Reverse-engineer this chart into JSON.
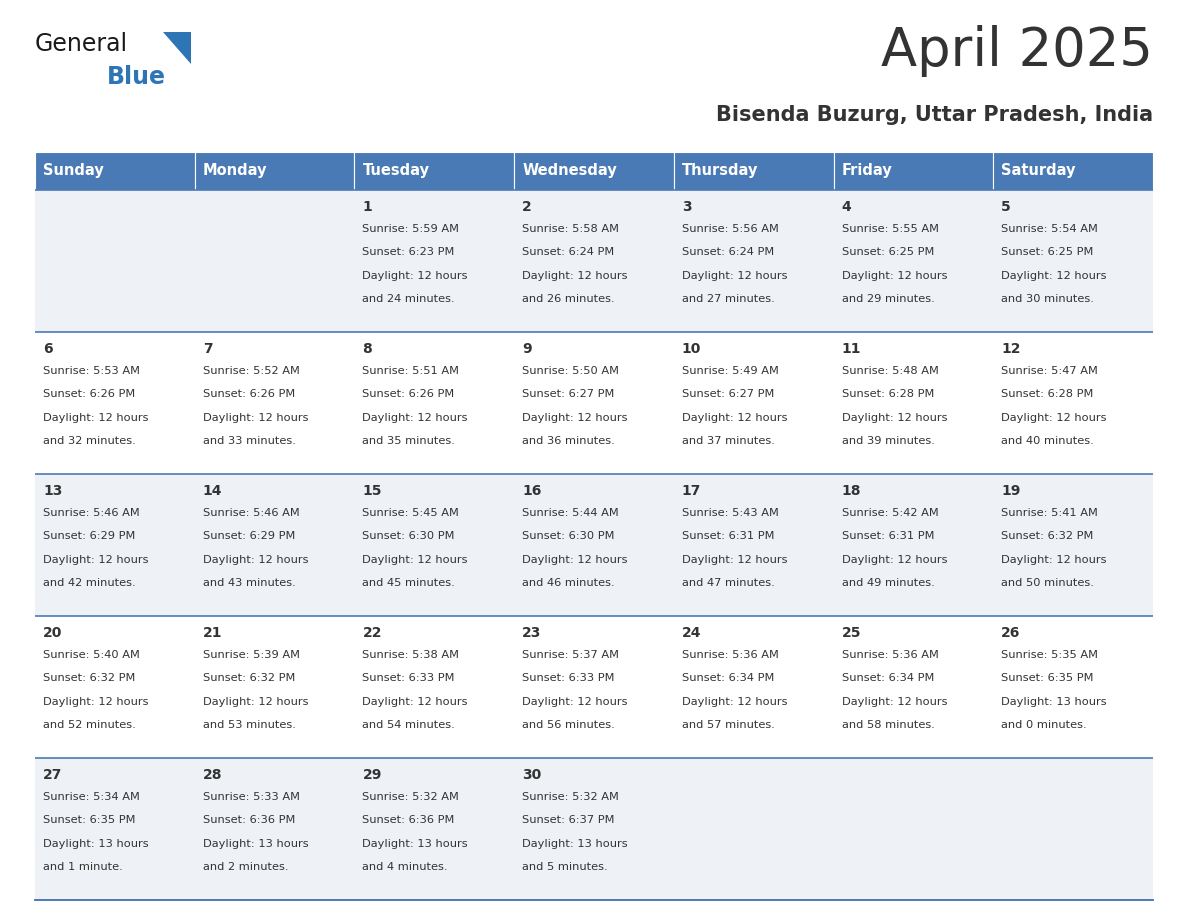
{
  "title": "April 2025",
  "subtitle": "Bisenda Buzurg, Uttar Pradesh, India",
  "header_bg": "#4a7ab5",
  "header_text": "#ffffff",
  "row_bg_light": "#eef2f7",
  "row_bg_white": "#ffffff",
  "border_color": "#4a7ab5",
  "text_color": "#333333",
  "logo_black": "#1a1a1a",
  "logo_blue": "#2e75b6",
  "days_of_week": [
    "Sunday",
    "Monday",
    "Tuesday",
    "Wednesday",
    "Thursday",
    "Friday",
    "Saturday"
  ],
  "calendar": [
    [
      null,
      null,
      {
        "day": 1,
        "sunrise": "5:59 AM",
        "sunset": "6:23 PM",
        "daylight": "12 hours",
        "daylight2": "and 24 minutes."
      },
      {
        "day": 2,
        "sunrise": "5:58 AM",
        "sunset": "6:24 PM",
        "daylight": "12 hours",
        "daylight2": "and 26 minutes."
      },
      {
        "day": 3,
        "sunrise": "5:56 AM",
        "sunset": "6:24 PM",
        "daylight": "12 hours",
        "daylight2": "and 27 minutes."
      },
      {
        "day": 4,
        "sunrise": "5:55 AM",
        "sunset": "6:25 PM",
        "daylight": "12 hours",
        "daylight2": "and 29 minutes."
      },
      {
        "day": 5,
        "sunrise": "5:54 AM",
        "sunset": "6:25 PM",
        "daylight": "12 hours",
        "daylight2": "and 30 minutes."
      }
    ],
    [
      {
        "day": 6,
        "sunrise": "5:53 AM",
        "sunset": "6:26 PM",
        "daylight": "12 hours",
        "daylight2": "and 32 minutes."
      },
      {
        "day": 7,
        "sunrise": "5:52 AM",
        "sunset": "6:26 PM",
        "daylight": "12 hours",
        "daylight2": "and 33 minutes."
      },
      {
        "day": 8,
        "sunrise": "5:51 AM",
        "sunset": "6:26 PM",
        "daylight": "12 hours",
        "daylight2": "and 35 minutes."
      },
      {
        "day": 9,
        "sunrise": "5:50 AM",
        "sunset": "6:27 PM",
        "daylight": "12 hours",
        "daylight2": "and 36 minutes."
      },
      {
        "day": 10,
        "sunrise": "5:49 AM",
        "sunset": "6:27 PM",
        "daylight": "12 hours",
        "daylight2": "and 37 minutes."
      },
      {
        "day": 11,
        "sunrise": "5:48 AM",
        "sunset": "6:28 PM",
        "daylight": "12 hours",
        "daylight2": "and 39 minutes."
      },
      {
        "day": 12,
        "sunrise": "5:47 AM",
        "sunset": "6:28 PM",
        "daylight": "12 hours",
        "daylight2": "and 40 minutes."
      }
    ],
    [
      {
        "day": 13,
        "sunrise": "5:46 AM",
        "sunset": "6:29 PM",
        "daylight": "12 hours",
        "daylight2": "and 42 minutes."
      },
      {
        "day": 14,
        "sunrise": "5:46 AM",
        "sunset": "6:29 PM",
        "daylight": "12 hours",
        "daylight2": "and 43 minutes."
      },
      {
        "day": 15,
        "sunrise": "5:45 AM",
        "sunset": "6:30 PM",
        "daylight": "12 hours",
        "daylight2": "and 45 minutes."
      },
      {
        "day": 16,
        "sunrise": "5:44 AM",
        "sunset": "6:30 PM",
        "daylight": "12 hours",
        "daylight2": "and 46 minutes."
      },
      {
        "day": 17,
        "sunrise": "5:43 AM",
        "sunset": "6:31 PM",
        "daylight": "12 hours",
        "daylight2": "and 47 minutes."
      },
      {
        "day": 18,
        "sunrise": "5:42 AM",
        "sunset": "6:31 PM",
        "daylight": "12 hours",
        "daylight2": "and 49 minutes."
      },
      {
        "day": 19,
        "sunrise": "5:41 AM",
        "sunset": "6:32 PM",
        "daylight": "12 hours",
        "daylight2": "and 50 minutes."
      }
    ],
    [
      {
        "day": 20,
        "sunrise": "5:40 AM",
        "sunset": "6:32 PM",
        "daylight": "12 hours",
        "daylight2": "and 52 minutes."
      },
      {
        "day": 21,
        "sunrise": "5:39 AM",
        "sunset": "6:32 PM",
        "daylight": "12 hours",
        "daylight2": "and 53 minutes."
      },
      {
        "day": 22,
        "sunrise": "5:38 AM",
        "sunset": "6:33 PM",
        "daylight": "12 hours",
        "daylight2": "and 54 minutes."
      },
      {
        "day": 23,
        "sunrise": "5:37 AM",
        "sunset": "6:33 PM",
        "daylight": "12 hours",
        "daylight2": "and 56 minutes."
      },
      {
        "day": 24,
        "sunrise": "5:36 AM",
        "sunset": "6:34 PM",
        "daylight": "12 hours",
        "daylight2": "and 57 minutes."
      },
      {
        "day": 25,
        "sunrise": "5:36 AM",
        "sunset": "6:34 PM",
        "daylight": "12 hours",
        "daylight2": "and 58 minutes."
      },
      {
        "day": 26,
        "sunrise": "5:35 AM",
        "sunset": "6:35 PM",
        "daylight": "13 hours",
        "daylight2": "and 0 minutes."
      }
    ],
    [
      {
        "day": 27,
        "sunrise": "5:34 AM",
        "sunset": "6:35 PM",
        "daylight": "13 hours",
        "daylight2": "and 1 minute."
      },
      {
        "day": 28,
        "sunrise": "5:33 AM",
        "sunset": "6:36 PM",
        "daylight": "13 hours",
        "daylight2": "and 2 minutes."
      },
      {
        "day": 29,
        "sunrise": "5:32 AM",
        "sunset": "6:36 PM",
        "daylight": "13 hours",
        "daylight2": "and 4 minutes."
      },
      {
        "day": 30,
        "sunrise": "5:32 AM",
        "sunset": "6:37 PM",
        "daylight": "13 hours",
        "daylight2": "and 5 minutes."
      },
      null,
      null,
      null
    ]
  ]
}
